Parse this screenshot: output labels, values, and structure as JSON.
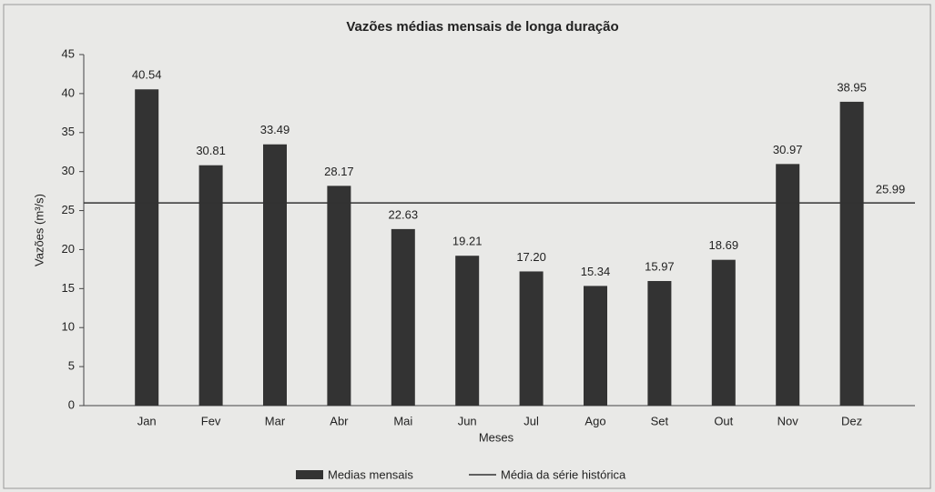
{
  "chart_data": {
    "type": "bar",
    "title": "Vazões médias mensais de longa duração",
    "x_label": "Meses",
    "y_label": "Vazões (m³/s)",
    "categories": [
      "Jan",
      "Fev",
      "Mar",
      "Abr",
      "Mai",
      "Jun",
      "Jul",
      "Ago",
      "Set",
      "Out",
      "Nov",
      "Dez"
    ],
    "series": [
      {
        "name": "Medias mensais",
        "color": "#333333",
        "values": [
          40.54,
          30.81,
          33.49,
          28.17,
          22.63,
          19.21,
          17.2,
          15.34,
          15.97,
          18.69,
          30.97,
          38.95
        ],
        "value_labels": [
          "40.54",
          "30.81",
          "33.49",
          "28.17",
          "22.63",
          "19.21",
          "17.20",
          "15.34",
          "15.97",
          "18.69",
          "30.97",
          "38.95"
        ]
      }
    ],
    "reference_line": {
      "name": "Média da série histórica",
      "value": 25.99,
      "color": "#333333"
    },
    "ylim": [
      0,
      45
    ],
    "yticks": [
      0,
      5,
      10,
      15,
      20,
      25,
      30,
      35,
      40,
      45
    ],
    "grid": false
  }
}
